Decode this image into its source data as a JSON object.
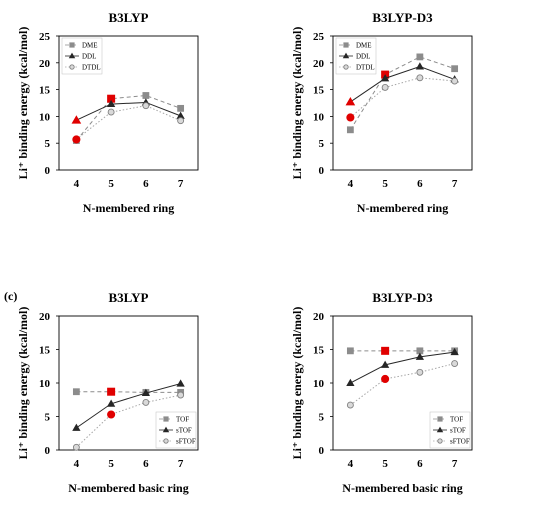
{
  "section_label": "(c)",
  "chart_data": [
    {
      "type": "line",
      "title": "B3LYP",
      "xlabel": "N-membered ring",
      "ylabel": "Li⁺ binding energy (kcal/mol)",
      "categories": [
        "4",
        "5",
        "6",
        "7"
      ],
      "ylim": [
        0,
        25
      ],
      "yticks": [
        0,
        5,
        10,
        15,
        20,
        25
      ],
      "legend_position": "top-left",
      "grid": false,
      "series": [
        {
          "name": "DME",
          "marker": "square",
          "line_style": "dashed",
          "color": "#8c8c8c",
          "values": [
            5.5,
            13.3,
            13.9,
            11.5
          ]
        },
        {
          "name": "DDL",
          "marker": "triangle",
          "line_style": "solid",
          "color": "#262626",
          "values": [
            9.3,
            12.3,
            12.6,
            10.1
          ]
        },
        {
          "name": "DTDL",
          "marker": "circle-open",
          "line_style": "dotted",
          "color": "#a6a6a6",
          "values": [
            5.7,
            10.8,
            12.0,
            9.2
          ]
        }
      ],
      "highlights": [
        {
          "series": "DME",
          "category": "5",
          "color": "#e00000"
        },
        {
          "series": "DDL",
          "category": "4",
          "color": "#e00000"
        },
        {
          "series": "DTDL",
          "category": "4",
          "color": "#e00000"
        }
      ]
    },
    {
      "type": "line",
      "title": "B3LYP-D3",
      "xlabel": "N-membered ring",
      "ylabel": "Li⁺ binding energy (kcal/mol)",
      "categories": [
        "4",
        "5",
        "6",
        "7"
      ],
      "ylim": [
        0,
        25
      ],
      "yticks": [
        0,
        5,
        10,
        15,
        20,
        25
      ],
      "legend_position": "top-left",
      "grid": false,
      "series": [
        {
          "name": "DME",
          "marker": "square",
          "line_style": "dashed",
          "color": "#8c8c8c",
          "values": [
            7.5,
            17.8,
            21.1,
            18.9
          ]
        },
        {
          "name": "DDL",
          "marker": "triangle",
          "line_style": "solid",
          "color": "#262626",
          "values": [
            12.7,
            17.1,
            19.3,
            16.9
          ]
        },
        {
          "name": "DTDL",
          "marker": "circle-open",
          "line_style": "dotted",
          "color": "#a6a6a6",
          "values": [
            9.8,
            15.4,
            17.2,
            16.6
          ]
        }
      ],
      "highlights": [
        {
          "series": "DME",
          "category": "5",
          "color": "#e00000"
        },
        {
          "series": "DDL",
          "category": "4",
          "color": "#e00000"
        },
        {
          "series": "DTDL",
          "category": "4",
          "color": "#e00000"
        }
      ]
    },
    {
      "type": "line",
      "title": "B3LYP",
      "xlabel": "N-membered basic ring",
      "ylabel": "Li⁺ binding energy (kcal/mol)",
      "categories": [
        "4",
        "5",
        "6",
        "7"
      ],
      "ylim": [
        0,
        20
      ],
      "yticks": [
        0,
        5,
        10,
        15,
        20
      ],
      "legend_position": "bottom-right",
      "grid": false,
      "series": [
        {
          "name": "TOF",
          "marker": "square",
          "line_style": "dashed",
          "color": "#8c8c8c",
          "values": [
            8.7,
            8.7,
            8.6,
            8.6
          ]
        },
        {
          "name": "sTOF",
          "marker": "triangle",
          "line_style": "solid",
          "color": "#262626",
          "values": [
            3.3,
            6.9,
            8.5,
            9.9
          ]
        },
        {
          "name": "sFTOF",
          "marker": "circle-open",
          "line_style": "dotted",
          "color": "#a6a6a6",
          "values": [
            0.4,
            5.3,
            7.1,
            8.2
          ]
        }
      ],
      "highlights": [
        {
          "series": "TOF",
          "category": "5",
          "color": "#e00000"
        },
        {
          "series": "sFTOF",
          "category": "5",
          "color": "#e00000"
        }
      ]
    },
    {
      "type": "line",
      "title": "B3LYP-D3",
      "xlabel": "N-membered basic ring",
      "ylabel": "Li⁺ binding energy (kcal/mol)",
      "categories": [
        "4",
        "5",
        "6",
        "7"
      ],
      "ylim": [
        0,
        20
      ],
      "yticks": [
        0,
        5,
        10,
        15,
        20
      ],
      "legend_position": "bottom-right",
      "grid": false,
      "series": [
        {
          "name": "TOF",
          "marker": "square",
          "line_style": "dashed",
          "color": "#8c8c8c",
          "values": [
            14.8,
            14.8,
            14.8,
            14.8
          ]
        },
        {
          "name": "sTOF",
          "marker": "triangle",
          "line_style": "solid",
          "color": "#262626",
          "values": [
            10.0,
            12.7,
            13.9,
            14.6
          ]
        },
        {
          "name": "sFTOF",
          "marker": "circle-open",
          "line_style": "dotted",
          "color": "#a6a6a6",
          "values": [
            6.7,
            10.6,
            11.6,
            12.9
          ]
        }
      ],
      "highlights": [
        {
          "series": "TOF",
          "category": "5",
          "color": "#e00000"
        },
        {
          "series": "sFTOF",
          "category": "5",
          "color": "#e00000"
        }
      ]
    }
  ]
}
